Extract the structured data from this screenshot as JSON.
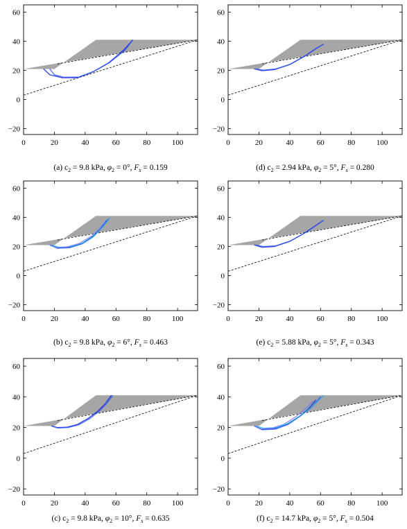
{
  "figure": {
    "surface_fill": "#a6a6a6",
    "frame_color": "#000000",
    "dashed_line_color": "#000000",
    "slip_surface_colors": [
      "#0a1de0",
      "#2b56f2",
      "#19a6e6",
      "#6f7ff0"
    ]
  },
  "chart_data": [
    {
      "type": "line",
      "panel": "a",
      "caption": {
        "prefix": "(a) c",
        "sub1": "2",
        "mid1": " = 9.8 kPa, ",
        "phi": "φ",
        "sub2": "2",
        "mid2": " = 0°, ",
        "fs": "F",
        "sub3": "s",
        "suffix": " = 0.159"
      },
      "xlim": [
        0,
        113
      ],
      "ylim": [
        -24,
        65
      ],
      "xticks": [
        "0",
        "20",
        "40",
        "60",
        "80",
        "100"
      ],
      "yticks": [
        "-20",
        "0",
        "20",
        "40",
        "60"
      ],
      "slope_profile": {
        "x": [
          0,
          0,
          113,
          113,
          47,
          20,
          0
        ],
        "y": [
          0,
          21,
          41,
          41,
          41,
          21,
          21
        ]
      },
      "dashed_lines": [
        {
          "x": [
            0,
            113
          ],
          "y": [
            3,
            41
          ]
        },
        {
          "x": [
            22,
            113
          ],
          "y": [
            24.5,
            41
          ]
        }
      ],
      "slip_surfaces": [
        {
          "x": [
            13,
            17,
            25,
            35,
            45,
            55,
            65,
            71
          ],
          "y": [
            21,
            17,
            15,
            15,
            19,
            25,
            34,
            41
          ]
        },
        {
          "x": [
            17,
            20,
            26,
            36,
            46,
            56,
            66,
            71
          ],
          "y": [
            21,
            17,
            15.3,
            15.5,
            19.5,
            25.5,
            34,
            41
          ]
        }
      ]
    },
    {
      "type": "line",
      "panel": "d",
      "caption": {
        "prefix": "(d) c",
        "sub1": "2",
        "mid1": " = 2.94 kPa, ",
        "phi": "φ",
        "sub2": "2",
        "mid2": " = 5°, ",
        "fs": "F",
        "sub3": "s",
        "suffix": " = 0.280"
      },
      "xlim": [
        0,
        113
      ],
      "ylim": [
        -24,
        65
      ],
      "xticks": [
        "0",
        "20",
        "40",
        "60",
        "80",
        "100"
      ],
      "yticks": [
        "-20",
        "0",
        "20",
        "40",
        "60"
      ],
      "slope_profile": {
        "x": [
          0,
          0,
          113,
          113,
          47,
          20,
          0
        ],
        "y": [
          0,
          21,
          41,
          41,
          41,
          21,
          21
        ]
      },
      "dashed_lines": [
        {
          "x": [
            0,
            113
          ],
          "y": [
            3,
            41
          ]
        },
        {
          "x": [
            22,
            113
          ],
          "y": [
            24.5,
            41
          ]
        }
      ],
      "slip_surfaces": [
        {
          "x": [
            17,
            22,
            30,
            40,
            50,
            57,
            62
          ],
          "y": [
            21,
            19.8,
            20.5,
            24,
            30,
            35,
            38
          ]
        },
        {
          "x": [
            18,
            23,
            31,
            41,
            51,
            58,
            62
          ],
          "y": [
            21,
            20.2,
            21,
            24.5,
            30.5,
            35.5,
            38
          ]
        }
      ]
    },
    {
      "type": "line",
      "panel": "b",
      "caption": {
        "prefix": "(b) c",
        "sub1": "2",
        "mid1": " = 9.8 kPa, ",
        "phi": "φ",
        "sub2": "2",
        "mid2": " = 6°, ",
        "fs": "F",
        "sub3": "s",
        "suffix": " = 0.463"
      },
      "xlim": [
        0,
        113
      ],
      "ylim": [
        -24,
        65
      ],
      "xticks": [
        "0",
        "20",
        "40",
        "60",
        "80",
        "100"
      ],
      "yticks": [
        "-20",
        "0",
        "20",
        "40",
        "60"
      ],
      "slope_profile": {
        "x": [
          0,
          0,
          113,
          113,
          47,
          20,
          0
        ],
        "y": [
          0,
          21,
          41,
          41,
          41,
          21,
          21
        ]
      },
      "dashed_lines": [
        {
          "x": [
            0,
            113
          ],
          "y": [
            3,
            41
          ]
        },
        {
          "x": [
            22,
            113
          ],
          "y": [
            24.5,
            41
          ]
        }
      ],
      "slip_surfaces": [
        {
          "x": [
            17,
            22,
            30,
            38,
            45,
            50,
            54
          ],
          "y": [
            21,
            19,
            19.5,
            22,
            27,
            32,
            38
          ]
        },
        {
          "x": [
            17,
            22,
            30,
            38,
            45,
            50,
            55
          ],
          "y": [
            21,
            18.8,
            19.2,
            21.8,
            26.5,
            32,
            39
          ]
        },
        {
          "x": [
            18,
            23,
            31,
            39,
            46,
            51,
            56
          ],
          "y": [
            21,
            19.5,
            20,
            22.5,
            27.5,
            33,
            39.5
          ]
        },
        {
          "x": [
            17,
            21,
            28,
            36,
            44,
            49,
            53
          ],
          "y": [
            21,
            19.2,
            19.6,
            22,
            27,
            32,
            37
          ]
        }
      ]
    },
    {
      "type": "line",
      "panel": "e",
      "caption": {
        "prefix": "(e) c",
        "sub1": "2",
        "mid1": " = 5.88 kPa, ",
        "phi": "φ",
        "sub2": "2",
        "mid2": " = 5°, ",
        "fs": "F",
        "sub3": "s",
        "suffix": " = 0.343"
      },
      "xlim": [
        0,
        113
      ],
      "ylim": [
        -24,
        65
      ],
      "xticks": [
        "0",
        "20",
        "40",
        "60",
        "80",
        "100"
      ],
      "yticks": [
        "-20",
        "0",
        "20",
        "40",
        "60"
      ],
      "slope_profile": {
        "x": [
          0,
          0,
          113,
          113,
          47,
          20,
          0
        ],
        "y": [
          0,
          21,
          41,
          41,
          41,
          21,
          21
        ]
      },
      "dashed_lines": [
        {
          "x": [
            0,
            113
          ],
          "y": [
            3,
            41
          ]
        },
        {
          "x": [
            22,
            113
          ],
          "y": [
            24.5,
            41
          ]
        }
      ],
      "slip_surfaces": [
        {
          "x": [
            17,
            22,
            30,
            40,
            50,
            57,
            62
          ],
          "y": [
            21,
            19.5,
            20,
            23.5,
            29.5,
            34.5,
            38
          ]
        },
        {
          "x": [
            18,
            23,
            31,
            41,
            51,
            58,
            62
          ],
          "y": [
            21,
            20,
            20.5,
            24,
            30,
            35,
            38
          ]
        }
      ]
    },
    {
      "type": "line",
      "panel": "c",
      "caption": {
        "prefix": "(c) c",
        "sub1": "2",
        "mid1": " = 9.8 kPa, ",
        "phi": "φ",
        "sub2": "2",
        "mid2": " = 10°, ",
        "fs": "F",
        "sub3": "s",
        "suffix": " = 0.635"
      },
      "xlim": [
        0,
        113
      ],
      "ylim": [
        -24,
        65
      ],
      "xticks": [
        "0",
        "20",
        "40",
        "60",
        "80",
        "100"
      ],
      "yticks": [
        "-20",
        "0",
        "20",
        "40",
        "60"
      ],
      "slope_profile": {
        "x": [
          0,
          0,
          113,
          113,
          47,
          20,
          0
        ],
        "y": [
          0,
          21,
          41,
          41,
          41,
          21,
          21
        ]
      },
      "dashed_lines": [
        {
          "x": [
            0,
            113
          ],
          "y": [
            3,
            41
          ]
        },
        {
          "x": [
            22,
            113
          ],
          "y": [
            24.5,
            41
          ]
        }
      ],
      "slip_surfaces": [
        {
          "x": [
            18,
            22,
            28,
            35,
            42,
            48,
            53,
            57
          ],
          "y": [
            21,
            20,
            20.2,
            22,
            26,
            30.5,
            35.5,
            41
          ]
        },
        {
          "x": [
            18,
            22,
            29,
            36,
            43,
            49,
            54,
            58
          ],
          "y": [
            21,
            19.7,
            20,
            21.8,
            25.8,
            30.5,
            35.5,
            41
          ]
        }
      ]
    },
    {
      "type": "line",
      "panel": "f",
      "caption": {
        "prefix": "(f) c",
        "sub1": "2",
        "mid1": " = 14.7 kPa, ",
        "phi": "φ",
        "sub2": "2",
        "mid2": " = 5°, ",
        "fs": "F",
        "sub3": "s",
        "suffix": " = 0.504"
      },
      "xlim": [
        0,
        113
      ],
      "ylim": [
        -24,
        65
      ],
      "xticks": [
        "0",
        "20",
        "40",
        "60",
        "80",
        "100"
      ],
      "yticks": [
        "-20",
        "0",
        "20",
        "40",
        "60"
      ],
      "slope_profile": {
        "x": [
          0,
          0,
          113,
          113,
          47,
          20,
          0
        ],
        "y": [
          0,
          21,
          41,
          41,
          41,
          21,
          21
        ]
      },
      "dashed_lines": [
        {
          "x": [
            0,
            113
          ],
          "y": [
            3,
            41
          ]
        },
        {
          "x": [
            22,
            113
          ],
          "y": [
            24.5,
            41
          ]
        }
      ],
      "slip_surfaces": [
        {
          "x": [
            17,
            22,
            30,
            38,
            46,
            52,
            57
          ],
          "y": [
            21,
            18.8,
            19.2,
            22,
            27,
            32,
            38
          ]
        },
        {
          "x": [
            17,
            22,
            31,
            39,
            47,
            54,
            60
          ],
          "y": [
            21,
            18.5,
            19,
            22,
            27.5,
            33,
            40
          ]
        },
        {
          "x": [
            18,
            23,
            32,
            40,
            48,
            55,
            62
          ],
          "y": [
            21,
            19.5,
            20,
            23,
            28.5,
            34,
            41
          ]
        },
        {
          "x": [
            17,
            21,
            28,
            36,
            44,
            50,
            55
          ],
          "y": [
            21,
            19,
            19.5,
            22,
            27,
            32,
            37
          ]
        }
      ]
    }
  ]
}
